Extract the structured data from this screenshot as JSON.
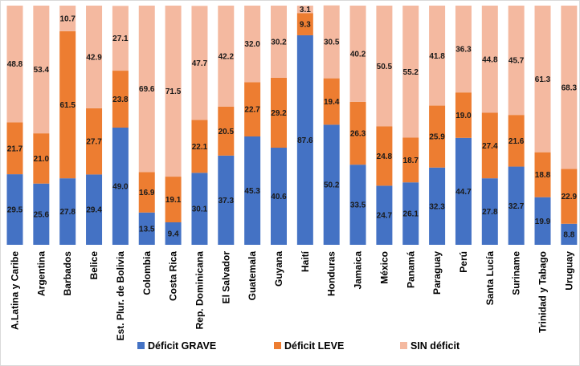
{
  "chart_data": {
    "type": "bar",
    "stacked": true,
    "normalized": true,
    "ylim": [
      0,
      100
    ],
    "grid": false,
    "legend_position": "bottom",
    "categories": [
      "A.Latina y Caribe",
      "Argentina",
      "Barbados",
      "Belice",
      "Est. Plur. de Bolivia",
      "Colombia",
      "Costa Rica",
      "Rep. Dominicana",
      "El Salvador",
      "Guatemala",
      "Guyana",
      "Haití",
      "Honduras",
      "Jamaica",
      "México",
      "Panamá",
      "Paraguay",
      "Perú",
      "Santa Lucía",
      "Suriname",
      "Trinidad y Tabago",
      "Uruguay"
    ],
    "series": [
      {
        "name": "Déficit GRAVE",
        "color": "#4472C4",
        "values": [
          29.5,
          25.6,
          27.8,
          29.4,
          49.0,
          13.5,
          9.4,
          30.1,
          37.3,
          45.3,
          40.6,
          87.6,
          50.2,
          33.5,
          24.7,
          26.1,
          32.3,
          44.7,
          27.8,
          32.7,
          19.9,
          8.8
        ]
      },
      {
        "name": "Déficit LEVE",
        "color": "#ED7D31",
        "values": [
          21.7,
          21.0,
          61.5,
          27.7,
          23.8,
          16.9,
          19.1,
          22.1,
          20.5,
          22.7,
          29.2,
          9.3,
          19.4,
          26.3,
          24.8,
          18.7,
          25.9,
          19.0,
          27.4,
          21.6,
          18.8,
          22.9
        ]
      },
      {
        "name": "SIN déficit",
        "color": "#F4B9A0",
        "values": [
          48.8,
          53.4,
          10.7,
          42.9,
          27.1,
          69.6,
          71.5,
          47.7,
          42.2,
          32.0,
          30.2,
          3.1,
          30.5,
          40.2,
          50.5,
          55.2,
          41.8,
          36.3,
          44.8,
          45.7,
          61.3,
          68.3
        ]
      }
    ]
  }
}
